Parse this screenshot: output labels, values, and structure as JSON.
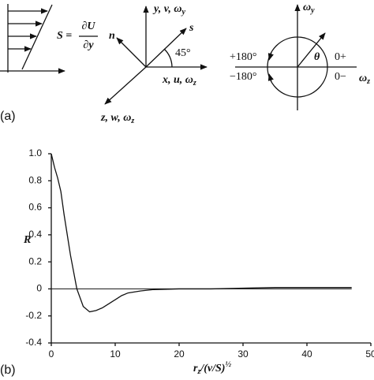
{
  "panel_a": {
    "tag": "(a)",
    "shear": {
      "s": "S =",
      "num": "∂U",
      "den": "∂y"
    },
    "axes": [
      {
        "text": "y, v, ω",
        "sub": "y"
      },
      {
        "text": "x, u, ω",
        "sub": "z"
      },
      {
        "text": "z, w, ω",
        "sub": "z"
      }
    ],
    "s_label": "s",
    "n_label": "n",
    "angle": "45°",
    "circle": {
      "top": {
        "text": "ω",
        "sub": "y"
      },
      "right": {
        "text": "ω",
        "sub": "z"
      },
      "theta": "θ",
      "plus180": "+180°",
      "minus180": "−180°",
      "zero_plus": "0+",
      "zero_minus": "0−"
    }
  },
  "chart_data": {
    "type": "line",
    "tag": "(b)",
    "y_label": "R",
    "x_label": [
      "r",
      "z",
      "/(ν/S)",
      "½"
    ],
    "x": [
      0,
      0.5,
      1,
      1.5,
      2,
      3,
      4,
      5,
      6,
      7,
      8,
      9,
      10,
      11,
      12,
      14,
      16,
      20,
      25,
      30,
      35,
      40,
      47
    ],
    "values": [
      1.0,
      0.9,
      0.82,
      0.72,
      0.55,
      0.25,
      0.0,
      -0.13,
      -0.17,
      -0.16,
      -0.14,
      -0.11,
      -0.08,
      -0.05,
      -0.03,
      -0.015,
      -0.005,
      0,
      0,
      0.005,
      0.01,
      0.01,
      0.01
    ],
    "color": "#111111",
    "hline": 0,
    "xlim": [
      0,
      50
    ],
    "ylim": [
      -0.4,
      1.0
    ],
    "xticks": [
      0,
      10,
      20,
      30,
      40,
      50
    ],
    "yticks": [
      {
        "value": 1.0,
        "label": "1.0"
      },
      0.8,
      0.6,
      0.4,
      0.2,
      0,
      -0.2,
      -0.4
    ]
  }
}
